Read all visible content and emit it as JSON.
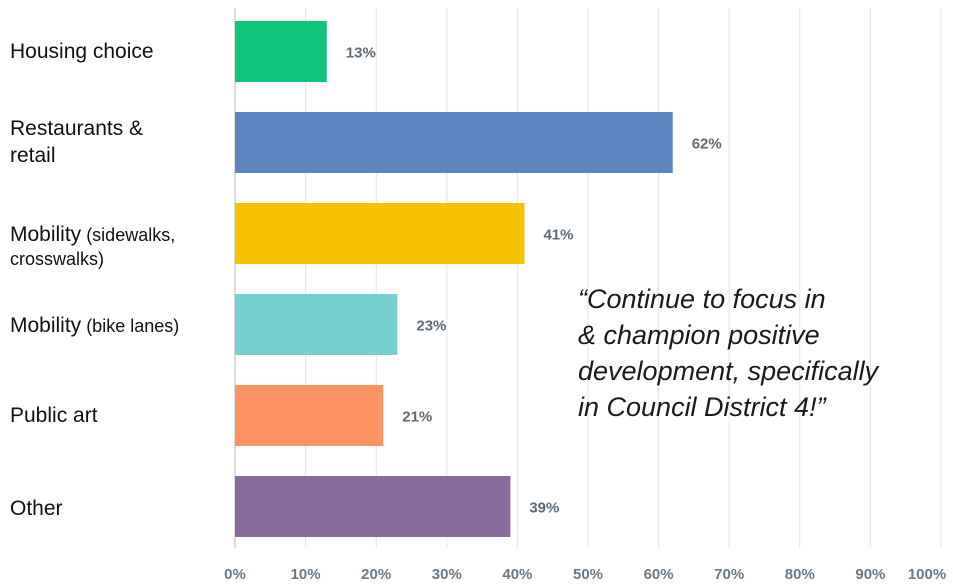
{
  "chart_data": {
    "type": "bar",
    "orientation": "horizontal",
    "categories": [
      {
        "main": "Housing choice",
        "sub": ""
      },
      {
        "main": "Restaurants &\nretail",
        "sub": ""
      },
      {
        "main": "Mobility",
        "sub": " (sidewalks,\ncrosswalks)"
      },
      {
        "main": "Mobility",
        "sub": " (bike lanes)"
      },
      {
        "main": "Public art",
        "sub": ""
      },
      {
        "main": "Other",
        "sub": ""
      }
    ],
    "values": [
      13,
      62,
      41,
      23,
      21,
      39
    ],
    "value_labels": [
      "13%",
      "62%",
      "41%",
      "23%",
      "21%",
      "39%"
    ],
    "colors": [
      "#10c47c",
      "#5b86c0",
      "#f6c200",
      "#77cfd1",
      "#fd9461",
      "#886a9c"
    ],
    "xlim": [
      0,
      100
    ],
    "x_ticks": [
      "0%",
      "10%",
      "20%",
      "30%",
      "40%",
      "50%",
      "60%",
      "70%",
      "80%",
      "90%",
      "100%"
    ],
    "grid": true,
    "title": "",
    "xlabel": "",
    "ylabel": ""
  },
  "annotation": {
    "quote": "“Continue to focus in\n& champion positive\ndevelopment, specifically\nin Council District 4!”"
  }
}
